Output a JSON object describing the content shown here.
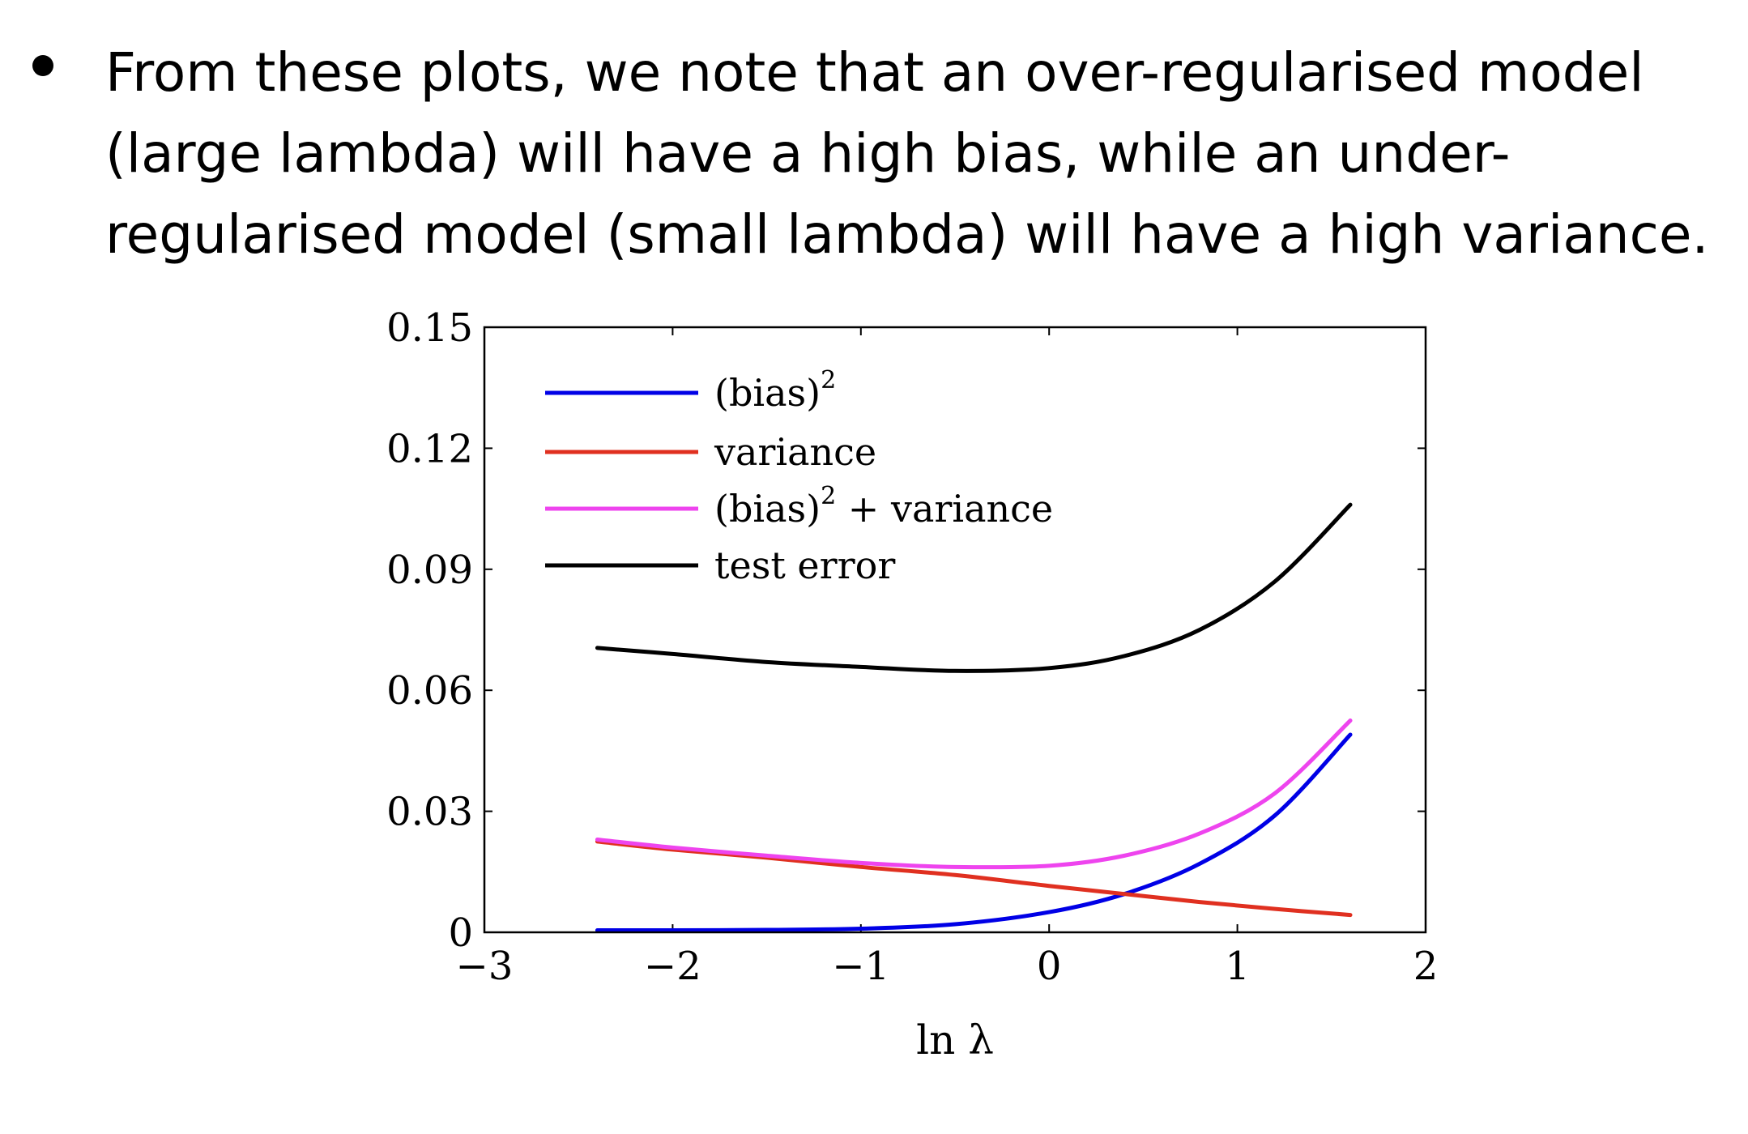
{
  "slide": {
    "bullet_lines": [
      "From these plots, we note that an over-regularised model",
      "(large lambda) will have a high bias, while an under-",
      "regularised model (small lambda) will have a high variance."
    ]
  },
  "chart_data": {
    "type": "line",
    "title": "",
    "xlabel": "ln λ",
    "ylabel": "",
    "xlim": [
      -3,
      2
    ],
    "ylim": [
      0,
      0.15
    ],
    "xticks": [
      -3,
      -2,
      -1,
      0,
      1,
      2
    ],
    "xtick_labels": [
      "−3",
      "−2",
      "−1",
      "0",
      "1",
      "2"
    ],
    "yticks": [
      0,
      0.03,
      0.06,
      0.09,
      0.12,
      0.15
    ],
    "ytick_labels": [
      "0",
      "0.03",
      "0.06",
      "0.09",
      "0.12",
      "0.15"
    ],
    "grid": false,
    "legend_position": "top-left",
    "x": [
      -2.4,
      -2.0,
      -1.5,
      -1.0,
      -0.5,
      0.0,
      0.4,
      0.8,
      1.2,
      1.6
    ],
    "series": [
      {
        "name": "(bias)",
        "name_sup": "2",
        "color": "#0000e6",
        "values": [
          0.0005,
          0.0005,
          0.0006,
          0.0009,
          0.002,
          0.005,
          0.0095,
          0.017,
          0.029,
          0.049
        ]
      },
      {
        "name": "variance",
        "name_sup": "",
        "color": "#e03020",
        "values": [
          0.0225,
          0.0205,
          0.0185,
          0.0162,
          0.0142,
          0.0115,
          0.0095,
          0.0075,
          0.0058,
          0.0043
        ]
      },
      {
        "name": "(bias)",
        "name_sup": "2",
        "name_suffix": " + variance",
        "color": "#ee44ee",
        "values": [
          0.023,
          0.021,
          0.019,
          0.0172,
          0.0162,
          0.0165,
          0.019,
          0.0245,
          0.0345,
          0.0525
        ]
      },
      {
        "name": "test error",
        "name_sup": "",
        "color": "#000000",
        "values": [
          0.0705,
          0.069,
          0.067,
          0.0658,
          0.0648,
          0.0655,
          0.0685,
          0.075,
          0.087,
          0.106
        ]
      }
    ]
  }
}
